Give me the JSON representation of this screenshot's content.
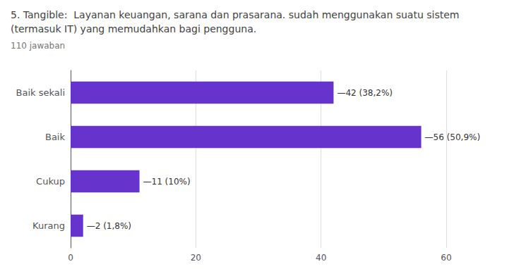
{
  "chart_data": {
    "type": "bar",
    "orientation": "horizontal",
    "title": "5. Tangible:  Layanan keuangan, sarana dan prasarana. sudah menggunakan suatu sistem\n(termasuk IT) yang memudahkan bagi pengguna.",
    "subtitle": "110 jawaban",
    "categories": [
      "Baik sekali",
      "Baik",
      "Cukup",
      "Kurang"
    ],
    "values": [
      42,
      56,
      11,
      2
    ],
    "value_labels": [
      "—42 (38,2%)",
      "—56 (50,9%)",
      "—11 (10%)",
      "—2 (1,8%)"
    ],
    "data_labels": true,
    "color": "#6633cc",
    "xlim": [
      0,
      60
    ],
    "xticks": [
      0,
      20,
      40,
      60
    ],
    "grid": true
  }
}
